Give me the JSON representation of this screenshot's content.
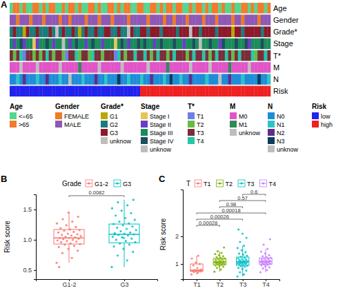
{
  "chart_data": [
    {
      "type": "heatmap",
      "panel": "A",
      "legend": "bottom",
      "rows": [
        {
          "name": "Age",
          "levels": [
            "<=65",
            ">65"
          ],
          "colors": [
            "#55d68f",
            "#f47a2c"
          ],
          "cells": [
            0,
            1,
            1,
            0,
            1,
            0,
            0,
            1,
            1,
            0,
            1,
            0,
            1,
            1,
            0,
            0,
            1,
            0,
            1,
            1,
            0,
            1,
            0,
            0,
            1,
            1,
            0,
            1,
            0,
            0,
            1,
            1,
            0,
            1,
            0,
            1,
            1,
            0,
            0,
            1,
            1,
            0,
            0,
            1,
            1,
            0,
            1,
            0,
            1,
            1,
            0,
            1,
            1,
            0,
            0,
            1,
            0,
            1,
            1,
            0,
            1,
            0,
            1,
            1,
            0,
            1,
            0,
            0,
            1,
            0,
            0,
            1,
            1,
            0,
            1,
            0,
            1,
            1,
            0,
            1
          ]
        },
        {
          "name": "Gender",
          "levels": [
            "FEMALE",
            "MALE"
          ],
          "colors": [
            "#f07b20",
            "#8e58b5"
          ],
          "cells": [
            1,
            1,
            0,
            1,
            1,
            1,
            0,
            1,
            1,
            1,
            0,
            1,
            1,
            1,
            1,
            0,
            1,
            1,
            0,
            1,
            1,
            1,
            1,
            0,
            1,
            1,
            1,
            0,
            1,
            1,
            1,
            0,
            1,
            1,
            1,
            1,
            0,
            1,
            1,
            1,
            1,
            1,
            0,
            1,
            1,
            1,
            1,
            0,
            1,
            1,
            0,
            1,
            1,
            1,
            0,
            1,
            1,
            1,
            1,
            0,
            1,
            1,
            1,
            0,
            1,
            1,
            1,
            1,
            0,
            1,
            1,
            0,
            1,
            1,
            1,
            1,
            0,
            1,
            1,
            1
          ]
        },
        {
          "name": "Grade*",
          "levels": [
            "G1",
            "G2",
            "G3",
            "unknow"
          ],
          "colors": [
            "#b8a800",
            "#1e7b7b",
            "#8b1a2b",
            "#bebebe"
          ],
          "cells": [
            1,
            2,
            1,
            1,
            0,
            2,
            1,
            1,
            2,
            1,
            1,
            1,
            2,
            1,
            3,
            1,
            2,
            1,
            1,
            2,
            1,
            0,
            1,
            2,
            1,
            1,
            2,
            1,
            1,
            2,
            2,
            1,
            1,
            2,
            1,
            1,
            3,
            2,
            1,
            1,
            2,
            2,
            1,
            2,
            2,
            2,
            1,
            2,
            2,
            2,
            2,
            1,
            2,
            2,
            2,
            3,
            2,
            2,
            1,
            2,
            2,
            2,
            2,
            1,
            2,
            2,
            2,
            2,
            0,
            2,
            2,
            1,
            2,
            2,
            2,
            2,
            2,
            1,
            2,
            2
          ]
        },
        {
          "name": "Stage",
          "levels": [
            "Stage I",
            "Stage II",
            "Stage III",
            "Stage IV",
            "unknow"
          ],
          "colors": [
            "#e8c35a",
            "#6a3dc7",
            "#1a8c5a",
            "#1b4f5e",
            "#bebebe"
          ],
          "cells": [
            2,
            1,
            2,
            3,
            1,
            2,
            2,
            0,
            1,
            2,
            2,
            3,
            2,
            1,
            2,
            2,
            4,
            2,
            1,
            2,
            3,
            2,
            2,
            1,
            2,
            3,
            2,
            2,
            1,
            2,
            2,
            2,
            0,
            2,
            3,
            2,
            1,
            2,
            2,
            3,
            2,
            3,
            2,
            2,
            1,
            2,
            3,
            2,
            2,
            2,
            3,
            2,
            2,
            1,
            2,
            2,
            3,
            2,
            4,
            2,
            2,
            3,
            2,
            2,
            1,
            3,
            2,
            2,
            2,
            3,
            2,
            2,
            3,
            1,
            2,
            2,
            2,
            3,
            2,
            2
          ]
        },
        {
          "name": "T*",
          "levels": [
            "T1",
            "T2",
            "T3",
            "T4"
          ],
          "colors": [
            "#6e7fe6",
            "#66bb44",
            "#7a2e3a",
            "#26c6a8"
          ],
          "cells": [
            2,
            1,
            2,
            3,
            0,
            2,
            2,
            1,
            2,
            1,
            2,
            3,
            2,
            1,
            2,
            2,
            1,
            0,
            2,
            2,
            3,
            1,
            2,
            2,
            1,
            3,
            2,
            2,
            1,
            2,
            2,
            2,
            0,
            3,
            2,
            1,
            2,
            2,
            3,
            2,
            2,
            3,
            2,
            1,
            2,
            3,
            2,
            2,
            1,
            2,
            3,
            2,
            2,
            2,
            1,
            2,
            3,
            2,
            2,
            3,
            2,
            1,
            2,
            3,
            2,
            2,
            3,
            2,
            1,
            2,
            3,
            2,
            2,
            2,
            3,
            1,
            2,
            2,
            3,
            2
          ]
        },
        {
          "name": "M",
          "levels": [
            "M0",
            "M1",
            "unknow"
          ],
          "colors": [
            "#e055c8",
            "#2e8b57",
            "#bebebe"
          ],
          "cells": [
            0,
            0,
            0,
            2,
            0,
            0,
            0,
            0,
            2,
            0,
            0,
            0,
            0,
            0,
            0,
            2,
            0,
            0,
            0,
            0,
            0,
            1,
            0,
            0,
            0,
            0,
            0,
            2,
            0,
            0,
            0,
            0,
            0,
            0,
            2,
            0,
            0,
            0,
            0,
            0,
            0,
            0,
            2,
            0,
            0,
            0,
            0,
            0,
            1,
            0,
            0,
            0,
            0,
            0,
            0,
            2,
            0,
            0,
            0,
            0,
            0,
            2,
            0,
            0,
            0,
            0,
            0,
            1,
            0,
            0,
            0,
            0,
            0,
            2,
            0,
            0,
            0,
            0,
            0,
            0
          ]
        },
        {
          "name": "N",
          "levels": [
            "N0",
            "N1",
            "N2",
            "N3",
            "unknow"
          ],
          "colors": [
            "#1f8cd8",
            "#2ec4c4",
            "#5e2e8c",
            "#0b3d5c",
            "#bebebe"
          ],
          "cells": [
            0,
            0,
            1,
            0,
            2,
            0,
            0,
            0,
            1,
            0,
            0,
            2,
            0,
            0,
            0,
            1,
            0,
            0,
            4,
            0,
            0,
            0,
            1,
            0,
            0,
            0,
            2,
            0,
            0,
            1,
            0,
            0,
            0,
            3,
            0,
            0,
            1,
            0,
            0,
            0,
            1,
            0,
            0,
            2,
            0,
            0,
            0,
            1,
            0,
            3,
            0,
            0,
            1,
            0,
            0,
            2,
            0,
            0,
            0,
            0,
            1,
            0,
            0,
            0,
            4,
            0,
            0,
            2,
            0,
            0,
            0,
            1,
            0,
            0,
            0,
            0,
            3,
            0,
            0,
            1
          ]
        },
        {
          "name": "Risk",
          "levels": [
            "low",
            "high"
          ],
          "colors": [
            "#2222ee",
            "#ee2222"
          ],
          "cells": [
            0,
            0,
            0,
            0,
            0,
            0,
            0,
            0,
            0,
            0,
            0,
            0,
            0,
            0,
            0,
            0,
            0,
            0,
            0,
            0,
            0,
            0,
            0,
            0,
            0,
            0,
            0,
            0,
            0,
            0,
            0,
            0,
            0,
            0,
            0,
            0,
            0,
            0,
            0,
            0,
            1,
            1,
            1,
            1,
            1,
            1,
            1,
            1,
            1,
            1,
            1,
            1,
            1,
            1,
            1,
            1,
            1,
            1,
            1,
            1,
            1,
            1,
            1,
            1,
            1,
            1,
            1,
            1,
            1,
            1,
            1,
            1,
            1,
            1,
            1,
            1,
            1,
            1,
            1,
            1
          ]
        }
      ]
    },
    {
      "type": "box",
      "panel": "B",
      "legend": "top",
      "legend_title": "Grade",
      "categories": [
        "G1-2",
        "G3"
      ],
      "colors": [
        "#f8766d",
        "#00bfc4"
      ],
      "ylabel": "Risk score",
      "ylim": [
        0.35,
        1.75
      ],
      "yticks": [
        0.5,
        {
          "value": 1,
          "label": "1.0"
        },
        1.5
      ],
      "boxes": [
        {
          "min": 0.62,
          "q1": 0.93,
          "median": 1.03,
          "q3": 1.17,
          "max": 1.45
        },
        {
          "min": 0.55,
          "q1": 0.95,
          "median": 1.09,
          "q3": 1.26,
          "max": 1.66
        }
      ],
      "points": [
        [
          0.62,
          0.7,
          0.78,
          0.82,
          0.85,
          0.88,
          0.9,
          0.92,
          0.93,
          0.94,
          0.96,
          0.97,
          0.98,
          0.99,
          1.0,
          1.01,
          1.02,
          1.03,
          1.03,
          1.04,
          1.05,
          1.06,
          1.07,
          1.08,
          1.09,
          1.1,
          1.12,
          1.13,
          1.15,
          1.16,
          1.17,
          1.19,
          1.21,
          1.24,
          1.27,
          1.3,
          1.34,
          1.38,
          1.45,
          0.55
        ],
        [
          0.55,
          0.66,
          0.74,
          0.8,
          0.85,
          0.89,
          0.92,
          0.94,
          0.96,
          0.98,
          1.0,
          1.02,
          1.04,
          1.05,
          1.07,
          1.08,
          1.09,
          1.1,
          1.11,
          1.12,
          1.14,
          1.16,
          1.18,
          1.2,
          1.22,
          1.24,
          1.26,
          1.27,
          1.3,
          1.33,
          1.36,
          1.4,
          1.44,
          1.48,
          1.52,
          1.57,
          1.62,
          1.66,
          1.03,
          1.09
        ]
      ],
      "comparisons": [
        {
          "groups": [
            0,
            1
          ],
          "p": 0.0082
        }
      ]
    },
    {
      "type": "box",
      "panel": "C",
      "legend": "top",
      "legend_title": "T",
      "categories": [
        "T1",
        "T2",
        "T3",
        "T4"
      ],
      "colors": [
        "#f8766d",
        "#7cae00",
        "#00bfc4",
        "#c77cff"
      ],
      "ylabel": "Risk score",
      "ylim": [
        0.45,
        3.7
      ],
      "yticks": [
        1,
        2
      ],
      "boxes": [
        {
          "min": 0.62,
          "q1": 0.73,
          "median": 0.77,
          "q3": 1.0,
          "max": 1.3
        },
        {
          "min": 0.72,
          "q1": 0.97,
          "median": 1.065,
          "q3": 1.2,
          "max": 1.46
        },
        {
          "min": 0.55,
          "q1": 0.95,
          "median": 1.085,
          "q3": 1.25,
          "max": 1.66
        },
        {
          "min": 0.7,
          "q1": 0.99,
          "median": 1.09,
          "q3": 1.22,
          "max": 1.55
        }
      ],
      "points": [
        [
          0.62,
          0.68,
          0.71,
          0.73,
          0.75,
          0.76,
          0.77,
          0.78,
          0.8,
          0.85,
          0.95,
          1.0,
          1.05,
          1.2,
          1.3
        ],
        [
          0.72,
          0.8,
          0.86,
          0.9,
          0.93,
          0.95,
          0.97,
          0.99,
          1.0,
          1.02,
          1.03,
          1.04,
          1.05,
          1.06,
          1.07,
          1.08,
          1.1,
          1.12,
          1.14,
          1.16,
          1.18,
          1.2,
          1.22,
          1.25,
          1.28,
          1.32,
          1.36,
          1.4,
          1.46,
          1.6
        ],
        [
          0.55,
          0.62,
          0.7,
          0.76,
          0.82,
          0.86,
          0.9,
          0.92,
          0.94,
          0.96,
          0.98,
          1.0,
          1.01,
          1.02,
          1.03,
          1.04,
          1.05,
          1.06,
          1.07,
          1.08,
          1.09,
          1.1,
          1.12,
          1.14,
          1.16,
          1.18,
          1.2,
          1.23,
          1.26,
          1.3,
          1.34,
          1.38,
          1.43,
          1.5,
          1.58,
          1.66,
          1.8,
          1.95,
          2.1,
          2.25
        ],
        [
          0.7,
          0.78,
          0.84,
          0.88,
          0.92,
          0.95,
          0.97,
          0.99,
          1.01,
          1.03,
          1.04,
          1.05,
          1.06,
          1.07,
          1.08,
          1.1,
          1.12,
          1.14,
          1.16,
          1.18,
          1.2,
          1.22,
          1.25,
          1.28,
          1.32,
          1.38,
          1.45,
          1.55,
          1.7,
          1.9
        ]
      ],
      "comparisons": [
        {
          "groups": [
            0,
            1
          ],
          "p": 0.00028
        },
        {
          "groups": [
            0,
            2
          ],
          "p": 0.00026
        },
        {
          "groups": [
            0,
            3
          ],
          "p": 0.00018
        },
        {
          "groups": [
            1,
            2
          ],
          "p": 0.98
        },
        {
          "groups": [
            1,
            3
          ],
          "p": 0.57
        },
        {
          "groups": [
            2,
            3
          ],
          "p": 0.6
        }
      ]
    }
  ]
}
